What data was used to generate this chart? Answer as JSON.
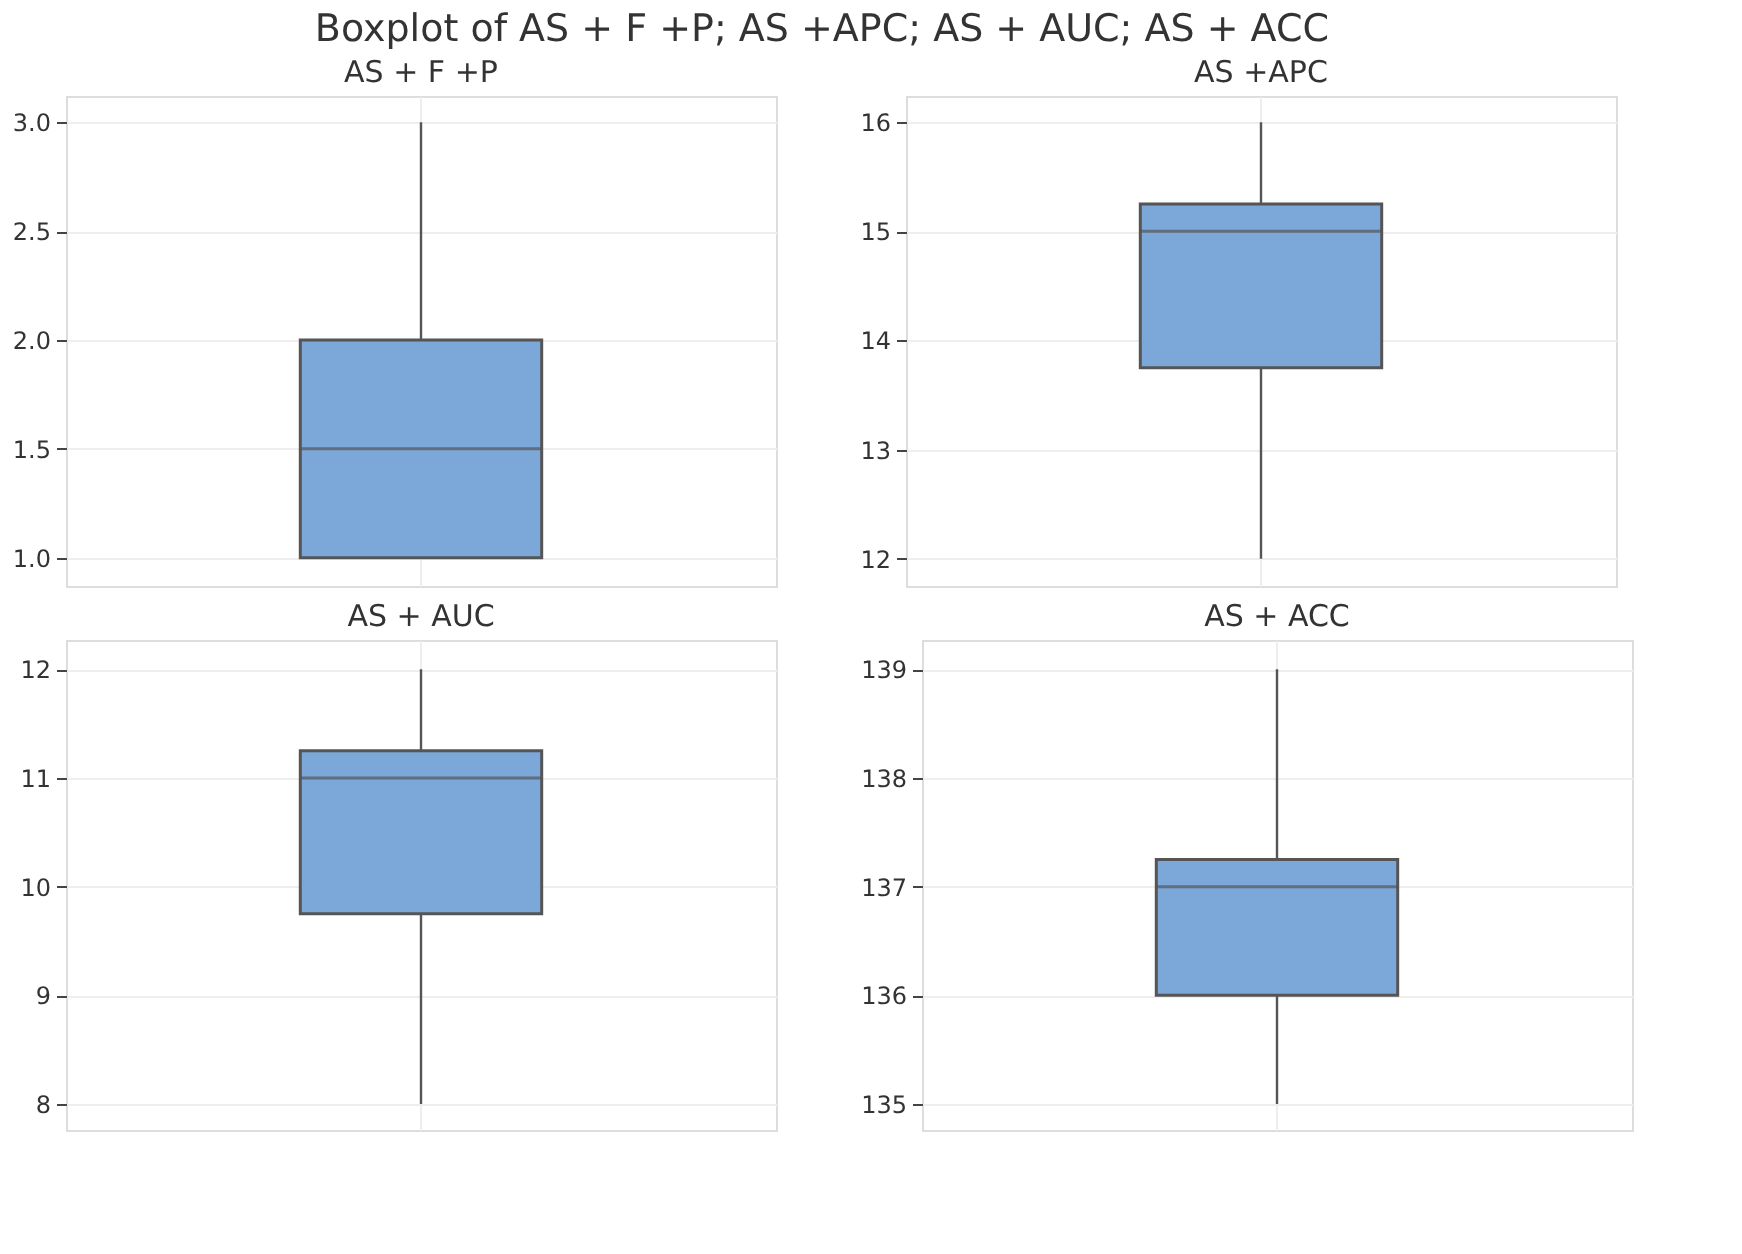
{
  "chart_data": [
    {
      "type": "box",
      "title": "Boxplot of AS + F +P; AS +APC; AS + AUC; AS + ACC",
      "subtitle": "AS + F +P",
      "categories": [
        null
      ],
      "color": "#7ba7d9",
      "grid": true,
      "tick_labels": "y",
      "ylim": [
        0.87,
        3.12
      ],
      "yticks": [
        {
          "value": 1,
          "label": "1.0"
        },
        1.5,
        {
          "value": 2,
          "label": "2.0"
        },
        2.5,
        {
          "value": 3,
          "label": "3.0"
        }
      ],
      "boxes": [
        {
          "low": 1,
          "q1": 1,
          "median": 1.5,
          "q3": 2,
          "high": 3
        }
      ]
    },
    {
      "type": "box",
      "subtitle": "AS +APC",
      "categories": [
        null
      ],
      "color": "#7ba7d9",
      "grid": true,
      "tick_labels": "y",
      "ylim": [
        11.75,
        16.24
      ],
      "yticks": [
        12,
        13,
        14,
        15,
        16
      ],
      "boxes": [
        {
          "low": 12,
          "q1": 13.75,
          "median": 15,
          "q3": 15.25,
          "high": 16
        }
      ]
    },
    {
      "type": "box",
      "subtitle": "AS + AUC",
      "categories": [
        null
      ],
      "color": "#7ba7d9",
      "grid": true,
      "tick_labels": "y",
      "ylim": [
        7.76,
        12.27
      ],
      "yticks": [
        8,
        9,
        10,
        11,
        12
      ],
      "boxes": [
        {
          "low": 8,
          "q1": 9.75,
          "median": 11,
          "q3": 11.25,
          "high": 12
        }
      ]
    },
    {
      "type": "box",
      "subtitle": "AS + ACC",
      "categories": [
        null
      ],
      "color": "#7ba7d9",
      "grid": true,
      "tick_labels": "y",
      "ylim": [
        134.76,
        139.27
      ],
      "yticks": [
        135,
        136,
        137,
        138,
        139
      ],
      "boxes": [
        {
          "low": 135,
          "q1": 136,
          "median": 137,
          "q3": 137.25,
          "high": 139
        }
      ]
    }
  ]
}
